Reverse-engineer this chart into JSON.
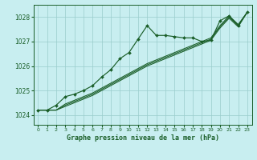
{
  "title": "Graphe pression niveau de la mer (hPa)",
  "bg_color": "#c8eef0",
  "grid_color": "#99cccc",
  "line_color": "#1a5e28",
  "marker_color": "#1a5e28",
  "xlim": [
    -0.5,
    23.5
  ],
  "ylim": [
    1023.6,
    1028.5
  ],
  "xtick_labels": [
    "0",
    "1",
    "2",
    "3",
    "4",
    "5",
    "6",
    "7",
    "8",
    "9",
    "10",
    "11",
    "12",
    "13",
    "14",
    "15",
    "16",
    "17",
    "18",
    "19",
    "20",
    "21",
    "22",
    "23"
  ],
  "yticks": [
    1024,
    1025,
    1026,
    1027,
    1028
  ],
  "series_main": [
    1024.2,
    1024.2,
    1024.4,
    1024.75,
    1024.85,
    1025.0,
    1025.2,
    1025.55,
    1025.85,
    1026.3,
    1026.55,
    1027.1,
    1027.65,
    1027.25,
    1027.25,
    1027.2,
    1027.15,
    1027.15,
    1027.0,
    1027.05,
    1027.85,
    1028.05,
    1027.65,
    1028.2
  ],
  "series_smooth1": [
    1024.2,
    1024.2,
    1024.2,
    1024.4,
    1024.55,
    1024.7,
    1024.85,
    1025.05,
    1025.25,
    1025.45,
    1025.65,
    1025.85,
    1026.05,
    1026.2,
    1026.35,
    1026.5,
    1026.65,
    1026.8,
    1026.95,
    1027.1,
    1027.6,
    1028.0,
    1027.65,
    1028.2
  ],
  "series_smooth2": [
    1024.2,
    1024.2,
    1024.2,
    1024.35,
    1024.5,
    1024.65,
    1024.8,
    1025.0,
    1025.2,
    1025.4,
    1025.6,
    1025.8,
    1026.0,
    1026.15,
    1026.3,
    1026.45,
    1026.6,
    1026.75,
    1026.9,
    1027.05,
    1027.55,
    1027.95,
    1027.6,
    1028.2
  ],
  "series_smooth3": [
    1024.2,
    1024.2,
    1024.2,
    1024.45,
    1024.6,
    1024.75,
    1024.9,
    1025.1,
    1025.3,
    1025.5,
    1025.7,
    1025.9,
    1026.1,
    1026.25,
    1026.4,
    1026.55,
    1026.7,
    1026.85,
    1027.0,
    1027.15,
    1027.65,
    1028.05,
    1027.7,
    1028.2
  ]
}
